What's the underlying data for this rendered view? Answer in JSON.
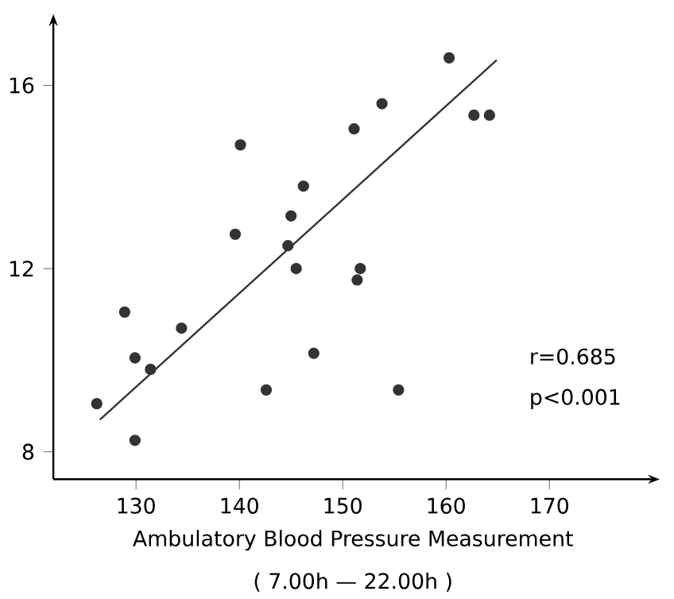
{
  "chart_data": {
    "type": "scatter",
    "xlabel": "Ambulatory Blood Pressure Measurement",
    "annotations": [
      "( 7.00h — 22.00h )",
      "r=0.685",
      "p<0.001"
    ],
    "xlim": [
      122,
      180
    ],
    "ylim": [
      7.4,
      17.4
    ],
    "xticks": [
      130,
      140,
      150,
      160,
      170
    ],
    "yticks": [
      8,
      12,
      16
    ],
    "grid": false,
    "marker": "circle",
    "series": [
      {
        "color": "#333333",
        "x": [
          160.3,
          153.8,
          162.7,
          164.2,
          151.1,
          140.1,
          146.2,
          145.0,
          139.6,
          144.7,
          145.5,
          151.7,
          151.4,
          128.9,
          134.4,
          129.9,
          131.4,
          147.2,
          142.6,
          155.4,
          126.2,
          129.9
        ],
        "values": [
          16.6,
          15.6,
          15.35,
          15.35,
          15.05,
          14.7,
          13.8,
          13.15,
          12.75,
          12.5,
          12.0,
          12.0,
          11.75,
          11.05,
          10.7,
          10.05,
          9.8,
          10.15,
          9.35,
          9.35,
          9.05,
          8.25
        ]
      },
      {
        "type": "line",
        "color": "#333333",
        "marker": "none",
        "line_style": "solid",
        "x": [
          126.5,
          164.9
        ],
        "values": [
          8.7,
          16.55
        ]
      }
    ]
  }
}
